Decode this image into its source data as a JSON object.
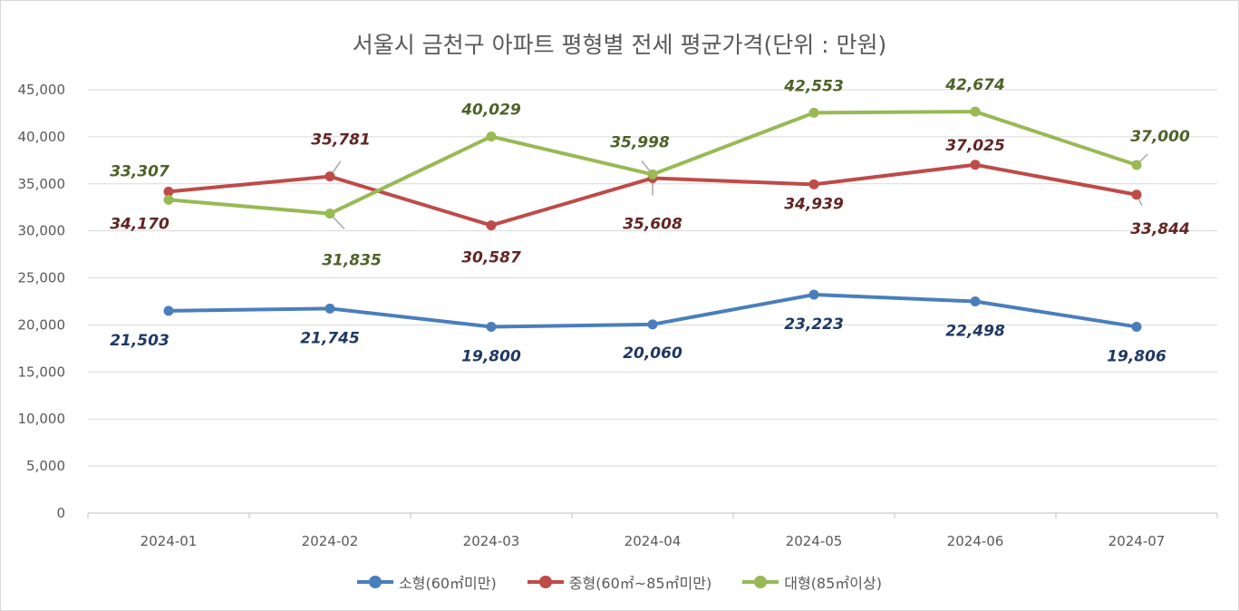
{
  "chart_data": {
    "type": "line",
    "title": "서울시 금천구 아파트 평형별 전세 평균가격(단위 : 만원)",
    "categories": [
      "2024-01",
      "2024-02",
      "2024-03",
      "2024-04",
      "2024-05",
      "2024-06",
      "2024-07"
    ],
    "ylim": [
      0,
      45000
    ],
    "yticks": [
      "0",
      "5,000",
      "10,000",
      "15,000",
      "20,000",
      "25,000",
      "30,000",
      "35,000",
      "40,000",
      "45,000"
    ],
    "grid": true,
    "legend_position": "bottom",
    "series": [
      {
        "name": "소형(60㎡미만)",
        "color": "#4a7ebb",
        "label_color": "#1f3864",
        "values": [
          21503,
          21745,
          19800,
          20060,
          23223,
          22498,
          19806
        ],
        "labels": [
          "21,503",
          "21,745",
          "19,800",
          "20,060",
          "23,223",
          "22,498",
          "19,806"
        ]
      },
      {
        "name": "중형(60㎡~85㎡미만)",
        "color": "#be4b48",
        "label_color": "#632523",
        "values": [
          34170,
          35781,
          30587,
          35608,
          34939,
          37025,
          33844
        ],
        "labels": [
          "34,170",
          "35,781",
          "30,587",
          "35,608",
          "34,939",
          "37,025",
          "33,844"
        ]
      },
      {
        "name": "대형(85㎡이상)",
        "color": "#98b954",
        "label_color": "#4f6228",
        "values": [
          33307,
          31835,
          40029,
          35998,
          42553,
          42674,
          37000
        ],
        "labels": [
          "33,307",
          "31,835",
          "40,029",
          "35,998",
          "42,553",
          "42,674",
          "37,000"
        ]
      }
    ]
  }
}
